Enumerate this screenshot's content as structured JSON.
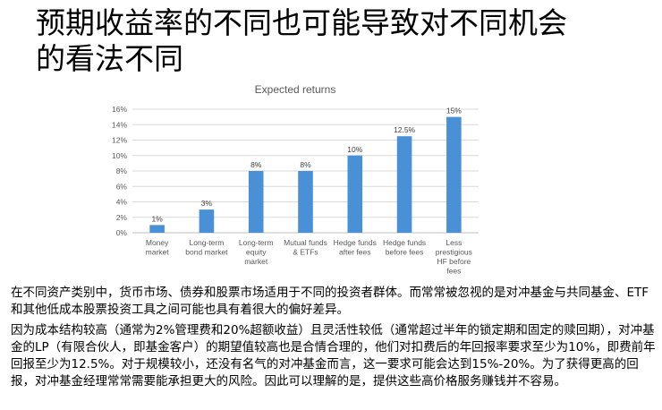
{
  "slide": {
    "title_line1": "预期收益率的不同也可能导致对不同机会",
    "title_line2": "的看法不同",
    "paragraph1": "在不同资产类别中，货币市场、债券和股票市场适用于不同的投资者群体。而常常被忽视的是对冲基金与共同基金、ETF和其他低成本股票投资工具之间可能也具有着很大的偏好差异。",
    "paragraph2": "因为成本结构较高（通常为2%管理费和20%超额收益）且灵活性较低（通常超过半年的锁定期和固定的赎回期），对冲基金的LP（有限合伙人，即基金客户）的期望值较高也是合情合理的，他们对扣费后的年回报率要求至少为10%，即费前年回报至少为12.5%。对于规模较小，还没有名气的对冲基金而言，这一要求可能会达到15%-20%。为了获得更高的回报，对冲基金经理常常需要能承担更大的风险。因此可以理解的是，提供这些高价格服务赚钱并不容易。"
  },
  "chart_data": {
    "type": "bar",
    "title": "Expected returns",
    "categories": [
      [
        "Money",
        "market"
      ],
      [
        "Long-term",
        "bond market"
      ],
      [
        "Long-term",
        "equity",
        "market"
      ],
      [
        "Mutual funds",
        "& ETFs"
      ],
      [
        "Hedge funds",
        "after fees"
      ],
      [
        "Hedge funds",
        "before fees"
      ],
      [
        "Less",
        "prestigious",
        "HF before",
        "fees"
      ]
    ],
    "values": [
      1,
      3,
      8,
      8,
      10,
      12.5,
      15
    ],
    "data_labels": [
      "1%",
      "3%",
      "8%",
      "8%",
      "10%",
      "12.5%",
      "15%"
    ],
    "y_ticks": [
      "0%",
      "2%",
      "4%",
      "6%",
      "8%",
      "10%",
      "12%",
      "14%",
      "16%"
    ],
    "ylim": [
      0,
      16
    ],
    "xlabel": "",
    "ylabel": "",
    "grid": true,
    "legend": "none",
    "bar_color": "#4a90d6",
    "grid_color": "#d9d9d9"
  }
}
